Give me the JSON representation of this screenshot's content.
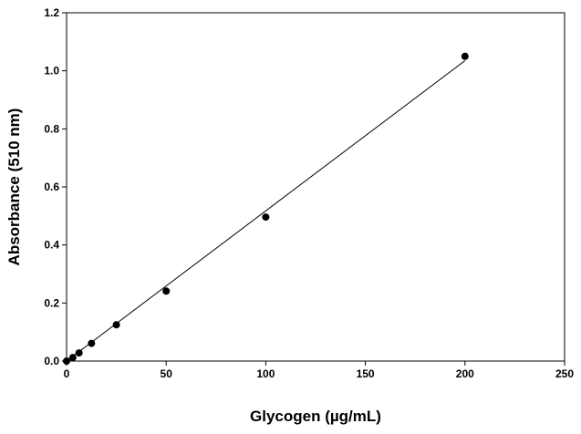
{
  "chart_data": {
    "type": "scatter",
    "title": "",
    "xlabel": "Glycogen (µg/mL)",
    "ylabel": "Absorbance (510 nm)",
    "xlim": [
      0,
      250
    ],
    "ylim": [
      0,
      1.2
    ],
    "x_ticks": [
      "0",
      "50",
      "100",
      "150",
      "200",
      "250"
    ],
    "y_ticks": [
      "0.0",
      "0.2",
      "0.4",
      "0.6",
      "0.8",
      "1.0",
      "1.2"
    ],
    "grid": false,
    "series": [
      {
        "marker": "filled-circle",
        "x": [
          0,
          3.125,
          6.25,
          12.5,
          25,
          50,
          100,
          200
        ],
        "y": [
          0.0,
          0.012,
          0.028,
          0.061,
          0.125,
          0.241,
          0.496,
          1.05
        ]
      }
    ],
    "fit_line": {
      "x": [
        0,
        200
      ],
      "y": [
        0.0,
        1.035
      ]
    },
    "colors": {
      "marker": "#000000",
      "line": "#000000",
      "axes": "#000000",
      "background": "#ffffff"
    }
  }
}
